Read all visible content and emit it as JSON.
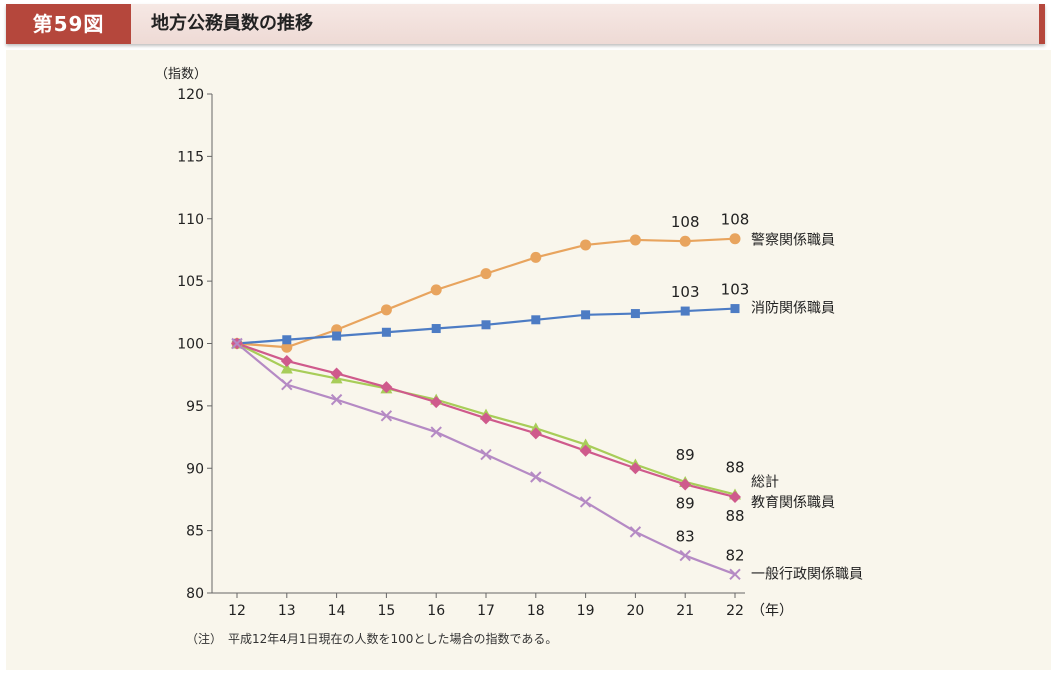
{
  "header": {
    "figure_number": "第59図",
    "title": "地方公務員数の推移"
  },
  "note": "（注）　平成12年4月1日現在の人数を100とした場合の指数である。",
  "chart_data": {
    "type": "line",
    "title": "地方公務員数の推移",
    "ylabel": "（指数）",
    "xlabel": "（年）",
    "ylim": [
      80,
      120
    ],
    "yticks": [
      80,
      85,
      90,
      95,
      100,
      105,
      110,
      115,
      120
    ],
    "x": [
      12,
      13,
      14,
      15,
      16,
      17,
      18,
      19,
      20,
      21,
      22
    ],
    "grid": false,
    "legend": "inline labels at right end of each line",
    "series": [
      {
        "name": "警察関係職員",
        "marker": "circle",
        "color": "#e8a45e",
        "values": [
          100,
          99.7,
          101.1,
          102.7,
          104.3,
          105.6,
          106.9,
          107.9,
          108.3,
          108.2,
          108.4
        ],
        "data_labels": [
          {
            "x": 21,
            "text": "108"
          },
          {
            "x": 22,
            "text": "108"
          }
        ]
      },
      {
        "name": "消防関係職員",
        "marker": "square",
        "color": "#4d7cc4",
        "values": [
          100,
          100.3,
          100.6,
          100.9,
          101.2,
          101.5,
          101.9,
          102.3,
          102.4,
          102.6,
          102.8
        ],
        "data_labels": [
          {
            "x": 21,
            "text": "103"
          },
          {
            "x": 22,
            "text": "103"
          }
        ]
      },
      {
        "name": "総計",
        "marker": "triangle",
        "color": "#a8cd59",
        "values": [
          100,
          98.0,
          97.2,
          96.4,
          95.5,
          94.3,
          93.2,
          91.9,
          90.3,
          88.9,
          87.9
        ],
        "data_labels": [
          {
            "x": 21,
            "text": "89"
          },
          {
            "x": 22,
            "text": "88"
          }
        ]
      },
      {
        "name": "教育関係職員",
        "marker": "diamond",
        "color": "#cf5a8c",
        "values": [
          100,
          98.6,
          97.6,
          96.5,
          95.3,
          94.0,
          92.8,
          91.4,
          90.0,
          88.7,
          87.7
        ],
        "data_labels": [
          {
            "x": 21,
            "text": "89"
          },
          {
            "x": 22,
            "text": "88"
          }
        ]
      },
      {
        "name": "一般行政関係職員",
        "marker": "cross",
        "color": "#b58ac4",
        "values": [
          100,
          96.7,
          95.5,
          94.2,
          92.9,
          91.1,
          89.3,
          87.3,
          84.9,
          83.0,
          81.5
        ],
        "data_labels": [
          {
            "x": 21,
            "text": "83"
          },
          {
            "x": 22,
            "text": "82"
          }
        ]
      }
    ]
  }
}
